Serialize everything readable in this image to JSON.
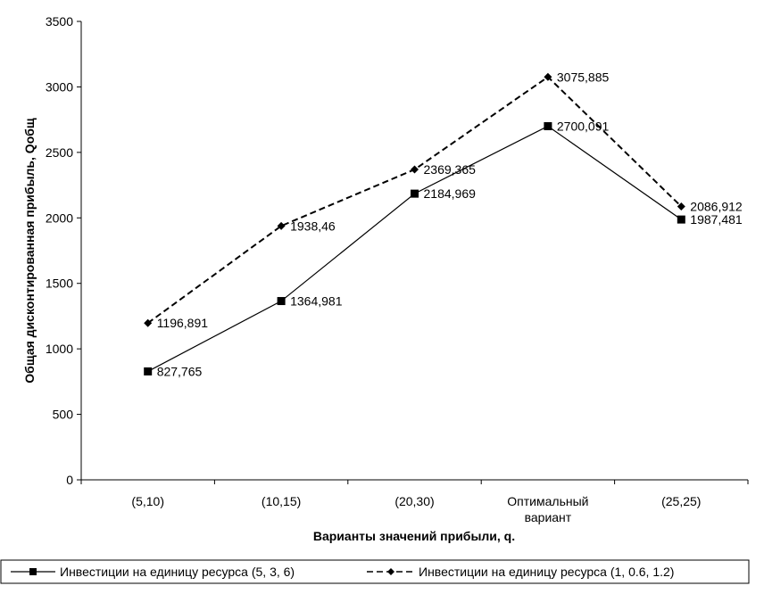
{
  "chart_data": {
    "type": "line",
    "title": "",
    "xlabel": "Варианты значений прибыли, q.",
    "ylabel": "Общая дисконтированная прибыль, Qобщ",
    "categories": [
      [
        "(5,10)"
      ],
      [
        "(10,15)"
      ],
      [
        "(20,30)"
      ],
      [
        "Оптимальный",
        "вариант"
      ],
      [
        "(25,25)"
      ]
    ],
    "ylim": [
      0,
      3500
    ],
    "yticks": [
      "0",
      "500",
      "1000",
      "1500",
      "2000",
      "2500",
      "3000",
      "3500"
    ],
    "grid": false,
    "legend_position": "bottom",
    "series": [
      {
        "name": "Инвестиции на единицу ресурса (5, 3, 6)",
        "values": [
          827.765,
          1364.981,
          2184.969,
          2700.091,
          1987.481
        ],
        "labels": [
          "827,765",
          "1364,981",
          "2184,969",
          "2700,091",
          "1987,481"
        ],
        "line_style": "solid",
        "marker": "square",
        "color": "#000000"
      },
      {
        "name": "Инвестиции на единицу ресурса (1, 0.6, 1.2)",
        "values": [
          1196.891,
          1938.46,
          2369.365,
          3075.885,
          2086.912
        ],
        "labels": [
          "1196,891",
          "1938,46",
          "2369,365",
          "3075,885",
          "2086,912"
        ],
        "line_style": "dashed",
        "marker": "diamond",
        "color": "#000000"
      }
    ]
  }
}
